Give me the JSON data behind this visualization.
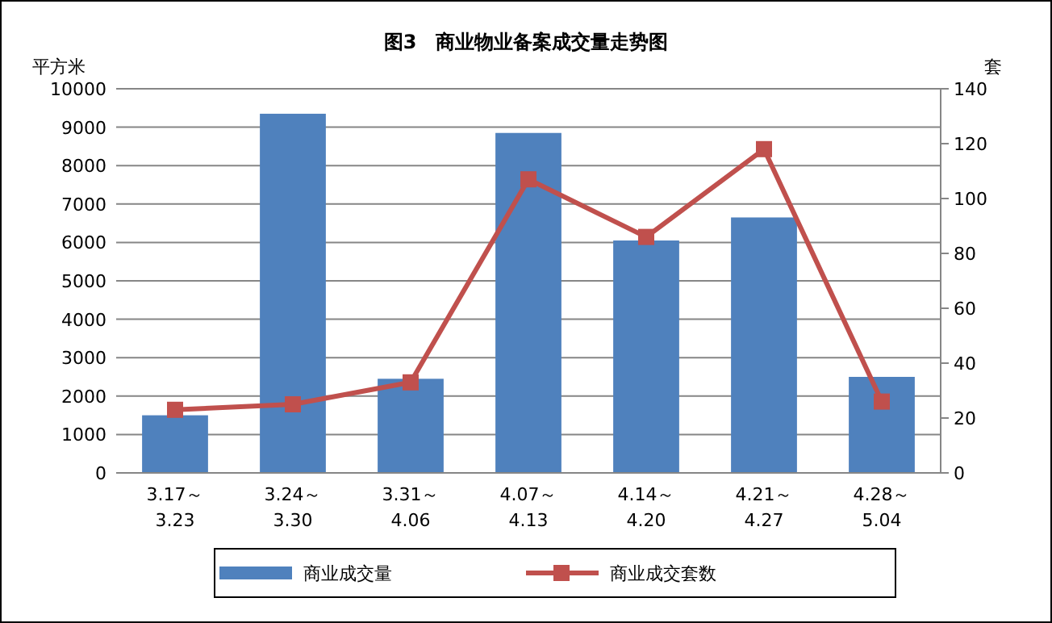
{
  "chart_data": {
    "type": "bar",
    "title": "图3　商业物业备案成交量走势图",
    "ylabel": "平方米",
    "y2label": "套",
    "categories": [
      "3.17～\n3.23",
      "3.24～\n3.30",
      "3.31～\n4.06",
      "4.07～\n4.13",
      "4.14～\n4.20",
      "4.21～\n4.27",
      "4.28～\n5.04"
    ],
    "series": [
      {
        "name": "商业成交量",
        "color": "#4f81bd",
        "values": [
          1500,
          9350,
          2450,
          8850,
          6050,
          6650,
          2500
        ]
      },
      {
        "name": "商业成交套数",
        "type": "line",
        "axis": "y2",
        "color": "#c0504d",
        "marker": "square",
        "values": [
          23,
          25,
          33,
          107,
          86,
          118,
          26
        ]
      }
    ],
    "ylim": [
      0,
      10000
    ],
    "yticks": [
      0,
      1000,
      2000,
      3000,
      4000,
      5000,
      6000,
      7000,
      8000,
      9000,
      10000
    ],
    "y2lim": [
      0,
      140
    ],
    "y2ticks": [
      0,
      20,
      40,
      60,
      80,
      100,
      120,
      140
    ],
    "grid": "y",
    "legend": "bottom"
  }
}
